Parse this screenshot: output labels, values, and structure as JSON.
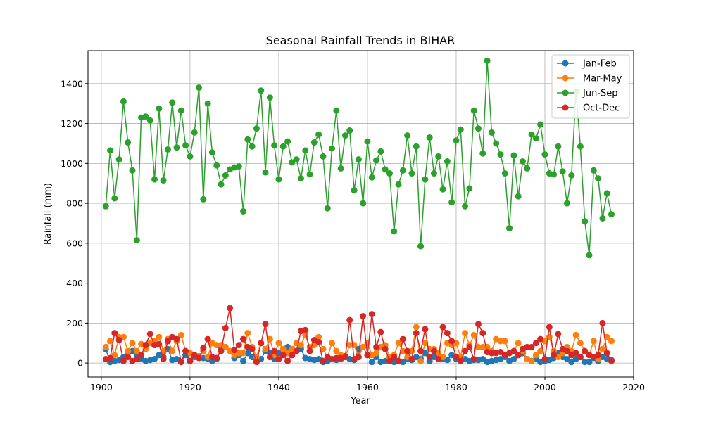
{
  "chart_data": {
    "type": "line",
    "title": "Seasonal Rainfall Trends in BIHAR",
    "xlabel": "Year",
    "ylabel": "Rainfall (mm)",
    "xlim": [
      1897,
      2020
    ],
    "ylim": [
      -70,
      1565
    ],
    "xticks": [
      1900,
      1920,
      1940,
      1960,
      1980,
      2000,
      2020
    ],
    "yticks": [
      0,
      200,
      400,
      600,
      800,
      1000,
      1200,
      1400
    ],
    "grid": true,
    "legend_position": "top-right",
    "x": [
      1901,
      1902,
      1903,
      1904,
      1905,
      1906,
      1907,
      1908,
      1909,
      1910,
      1911,
      1912,
      1913,
      1914,
      1915,
      1916,
      1917,
      1918,
      1919,
      1920,
      1921,
      1922,
      1923,
      1924,
      1925,
      1926,
      1927,
      1928,
      1929,
      1930,
      1931,
      1932,
      1933,
      1934,
      1935,
      1936,
      1937,
      1938,
      1939,
      1940,
      1941,
      1942,
      1943,
      1944,
      1945,
      1946,
      1947,
      1948,
      1949,
      1950,
      1951,
      1952,
      1953,
      1954,
      1955,
      1956,
      1957,
      1958,
      1959,
      1960,
      1961,
      1962,
      1963,
      1964,
      1965,
      1966,
      1967,
      1968,
      1969,
      1970,
      1971,
      1972,
      1973,
      1974,
      1975,
      1976,
      1977,
      1978,
      1979,
      1980,
      1981,
      1982,
      1983,
      1984,
      1985,
      1986,
      1987,
      1988,
      1989,
      1990,
      1991,
      1992,
      1993,
      1994,
      1995,
      1996,
      1997,
      1998,
      1999,
      2000,
      2001,
      2002,
      2003,
      2004,
      2005,
      2006,
      2007,
      2008,
      2009,
      2010,
      2011,
      2012,
      2013,
      2014,
      2015
    ],
    "series": [
      {
        "name": "Jan-Feb",
        "color": "#1f77b4",
        "values": [
          70,
          5,
          10,
          15,
          30,
          50,
          60,
          40,
          20,
          10,
          15,
          20,
          40,
          30,
          70,
          15,
          20,
          5,
          40,
          10,
          30,
          30,
          25,
          20,
          10,
          20,
          70,
          80,
          60,
          25,
          40,
          10,
          50,
          30,
          15,
          20,
          60,
          50,
          20,
          50,
          60,
          80,
          70,
          60,
          70,
          25,
          20,
          15,
          20,
          5,
          10,
          20,
          15,
          20,
          35,
          20,
          15,
          70,
          80,
          40,
          5,
          30,
          5,
          10,
          15,
          5,
          10,
          5,
          20,
          15,
          30,
          20,
          50,
          10,
          30,
          20,
          20,
          15,
          40,
          20,
          30,
          20,
          10,
          15,
          15,
          20,
          5,
          10,
          15,
          20,
          30,
          10,
          20,
          40,
          50,
          20,
          10,
          20,
          5,
          10,
          15,
          25,
          50,
          30,
          20,
          5,
          20,
          30,
          5,
          5,
          25,
          10,
          30,
          20,
          15
        ]
      },
      {
        "name": "Mar-May",
        "color": "#ff7f0e",
        "values": [
          80,
          110,
          40,
          130,
          130,
          60,
          100,
          60,
          95,
          70,
          100,
          110,
          130,
          60,
          120,
          60,
          110,
          140,
          60,
          50,
          40,
          35,
          60,
          30,
          100,
          90,
          90,
          80,
          60,
          40,
          50,
          50,
          150,
          80,
          30,
          100,
          70,
          120,
          40,
          100,
          70,
          50,
          70,
          100,
          90,
          140,
          80,
          90,
          130,
          70,
          30,
          100,
          60,
          40,
          30,
          90,
          90,
          30,
          80,
          100,
          40,
          50,
          80,
          90,
          30,
          40,
          100,
          60,
          30,
          60,
          180,
          10,
          100,
          70,
          70,
          50,
          30,
          100,
          90,
          100,
          30,
          150,
          90,
          140,
          80,
          80,
          80,
          60,
          120,
          110,
          110,
          50,
          60,
          100,
          60,
          20,
          10,
          40,
          60,
          110,
          130,
          60,
          30,
          50,
          80,
          60,
          140,
          100,
          60,
          40,
          110,
          20,
          70,
          130,
          110
        ]
      },
      {
        "name": "Jun-Sep",
        "color": "#2ca02c",
        "values": [
          785,
          1065,
          825,
          1020,
          1310,
          1105,
          965,
          615,
          1230,
          1235,
          1215,
          920,
          1275,
          915,
          1070,
          1305,
          1080,
          1265,
          1090,
          1035,
          1155,
          1380,
          820,
          1300,
          1055,
          990,
          895,
          940,
          970,
          980,
          985,
          760,
          1120,
          1085,
          1175,
          1365,
          955,
          1330,
          1090,
          920,
          1085,
          1110,
          1005,
          1020,
          925,
          1065,
          945,
          1105,
          1145,
          1035,
          775,
          1075,
          1265,
          975,
          1140,
          1165,
          865,
          1020,
          800,
          1110,
          930,
          1015,
          1060,
          970,
          950,
          660,
          895,
          965,
          1140,
          950,
          1085,
          585,
          920,
          1130,
          950,
          1035,
          870,
          1010,
          805,
          1115,
          1170,
          785,
          875,
          1265,
          1175,
          1050,
          1515,
          1155,
          1100,
          1045,
          950,
          675,
          1040,
          835,
          1010,
          975,
          1145,
          1125,
          1195,
          1045,
          950,
          945,
          1085,
          960,
          800,
          940,
          1360,
          1085,
          710,
          540,
          965,
          925,
          725,
          850,
          745
        ]
      },
      {
        "name": "Oct-Dec",
        "color": "#d62728",
        "values": [
          20,
          25,
          150,
          115,
          10,
          30,
          10,
          20,
          40,
          90,
          145,
          90,
          95,
          20,
          110,
          130,
          120,
          5,
          60,
          10,
          40,
          25,
          75,
          120,
          30,
          25,
          60,
          175,
          275,
          65,
          90,
          120,
          80,
          70,
          5,
          100,
          195,
          30,
          60,
          20,
          40,
          10,
          40,
          60,
          160,
          165,
          60,
          115,
          105,
          10,
          30,
          20,
          25,
          25,
          30,
          215,
          20,
          30,
          235,
          40,
          245,
          80,
          155,
          70,
          10,
          30,
          10,
          120,
          60,
          20,
          150,
          60,
          170,
          30,
          60,
          20,
          180,
          150,
          110,
          30,
          10,
          60,
          80,
          20,
          195,
          150,
          55,
          50,
          50,
          55,
          40,
          50,
          60,
          40,
          70,
          80,
          80,
          100,
          120,
          20,
          180,
          40,
          145,
          70,
          60,
          40,
          50,
          30,
          60,
          40,
          30,
          40,
          200,
          50,
          10
        ]
      }
    ]
  }
}
